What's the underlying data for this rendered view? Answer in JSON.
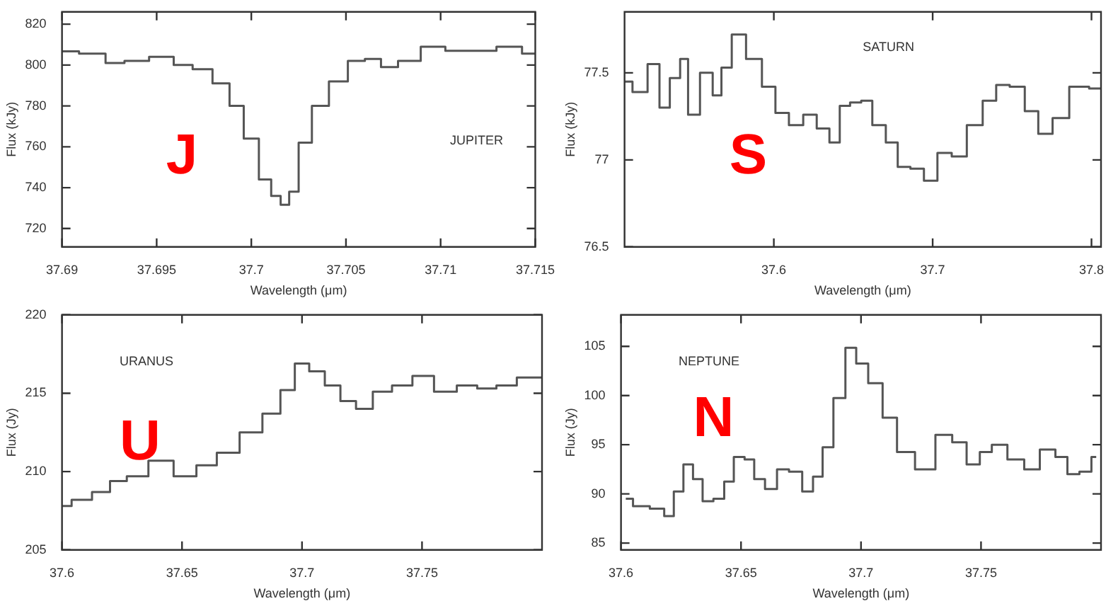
{
  "chart_data": [
    {
      "type": "step",
      "xlabel": "Wavelength (μm)",
      "ylabel": "Flux (kJy)",
      "annotations": [
        "JUPITER",
        "J"
      ],
      "xlim": [
        37.69,
        37.715
      ],
      "xticks": [
        37.69,
        37.695,
        37.7,
        37.705,
        37.71,
        37.715
      ],
      "ylim": [
        711,
        826
      ],
      "yticks": [
        720,
        740,
        760,
        780,
        800,
        820
      ],
      "color": "#555555",
      "x": [
        37.69,
        37.6918,
        37.6928,
        37.6938,
        37.6954,
        37.6964,
        37.6974,
        37.6985,
        37.6992,
        37.7,
        37.7008,
        37.7013,
        37.7018,
        37.7022,
        37.7028,
        37.7036,
        37.7046,
        37.7056,
        37.7064,
        37.7073,
        37.7082,
        37.7097,
        37.7108,
        37.7123,
        37.7136,
        37.715
      ],
      "values": [
        806.7,
        805.6,
        801,
        802,
        804,
        800,
        798,
        791,
        780,
        764,
        744,
        736,
        731.6,
        738,
        762,
        780,
        792,
        802,
        803,
        799,
        802,
        809,
        807,
        807,
        809,
        805.6
      ]
    },
    {
      "type": "step",
      "xlabel": "Wavelength (μm)",
      "ylabel": "Flux (kJy)",
      "annotations": [
        "SATURN",
        "S"
      ],
      "xlim": [
        37.506,
        37.806
      ],
      "xticks": [
        37.6,
        37.7,
        37.8
      ],
      "ylim": [
        76.5,
        77.85
      ],
      "yticks": [
        76.5,
        77,
        77.5
      ],
      "color": "#555555",
      "x": [
        37.506,
        37.516,
        37.525,
        37.531,
        37.538,
        37.544,
        37.548,
        37.559,
        37.564,
        37.57,
        37.577,
        37.588,
        37.597,
        37.605,
        37.614,
        37.623,
        37.631,
        37.639,
        37.644,
        37.652,
        37.658,
        37.666,
        37.675,
        37.681,
        37.691,
        37.698,
        37.708,
        37.716,
        37.727,
        37.736,
        37.744,
        37.753,
        37.763,
        37.77,
        37.781,
        37.791,
        37.806
      ],
      "values": [
        77.45,
        77.39,
        77.55,
        77.3,
        77.47,
        77.58,
        77.26,
        77.5,
        77.37,
        77.53,
        77.72,
        77.58,
        77.42,
        77.27,
        77.2,
        77.26,
        77.18,
        77.1,
        77.31,
        77.33,
        77.34,
        77.2,
        77.1,
        76.96,
        76.95,
        76.88,
        77.04,
        77.02,
        77.2,
        77.34,
        77.43,
        77.42,
        77.28,
        77.15,
        77.24,
        77.42,
        77.41
      ]
    },
    {
      "type": "step",
      "xlabel": "Wavelength (μm)",
      "ylabel": "Flux (Jy)",
      "annotations": [
        "URANUS",
        "U"
      ],
      "xlim": [
        37.6,
        37.8
      ],
      "xticks": [
        37.6,
        37.65,
        37.7,
        37.75
      ],
      "ylim": [
        205,
        220
      ],
      "yticks": [
        205,
        210,
        215,
        220
      ],
      "color": "#555555",
      "x": [
        37.6,
        37.608,
        37.617,
        37.623,
        37.631,
        37.641,
        37.652,
        37.66,
        37.669,
        37.679,
        37.688,
        37.694,
        37.7,
        37.706,
        37.713,
        37.719,
        37.726,
        37.733,
        37.742,
        37.75,
        37.76,
        37.769,
        37.777,
        37.785,
        37.794,
        37.8
      ],
      "values": [
        207.8,
        208.2,
        208.7,
        209.4,
        209.7,
        210.7,
        209.7,
        210.4,
        211.2,
        212.5,
        213.7,
        215.2,
        216.9,
        216.4,
        215.5,
        214.5,
        214,
        215.1,
        215.5,
        216.1,
        215.1,
        215.5,
        215.3,
        215.5,
        216,
        216
      ]
    },
    {
      "type": "step",
      "xlabel": "Wavelength (μm)",
      "ylabel": "Flux (Jy)",
      "annotations": [
        "NEPTUNE",
        "N"
      ],
      "xlim": [
        37.6,
        37.8
      ],
      "xticks": [
        37.6,
        37.65,
        37.7,
        37.75
      ],
      "ylim": [
        84.3,
        108.2
      ],
      "yticks": [
        85,
        90,
        95,
        100,
        105
      ],
      "color": "#555555",
      "x": [
        37.602,
        37.608,
        37.616,
        37.62,
        37.624,
        37.628,
        37.632,
        37.636,
        37.641,
        37.645,
        37.649,
        37.654,
        37.657,
        37.663,
        37.667,
        37.673,
        37.678,
        37.682,
        37.686,
        37.691,
        37.696,
        37.7,
        37.706,
        37.712,
        37.718,
        37.727,
        37.735,
        37.741,
        37.747,
        37.752,
        37.757,
        37.765,
        37.771,
        37.778,
        37.784,
        37.788,
        37.794,
        37.798
      ],
      "values": [
        89.5,
        88.75,
        88.5,
        87.75,
        90.25,
        93,
        91.5,
        89.25,
        89.5,
        91.25,
        93.75,
        93.5,
        91.5,
        90.5,
        92.5,
        92.25,
        90.25,
        91.75,
        94.75,
        99.75,
        104.85,
        103.25,
        101.25,
        97.75,
        94.25,
        92.5,
        96,
        95.25,
        93,
        94.25,
        95,
        93.5,
        92.5,
        94.5,
        93.75,
        92,
        92.25,
        93.75
      ]
    }
  ]
}
